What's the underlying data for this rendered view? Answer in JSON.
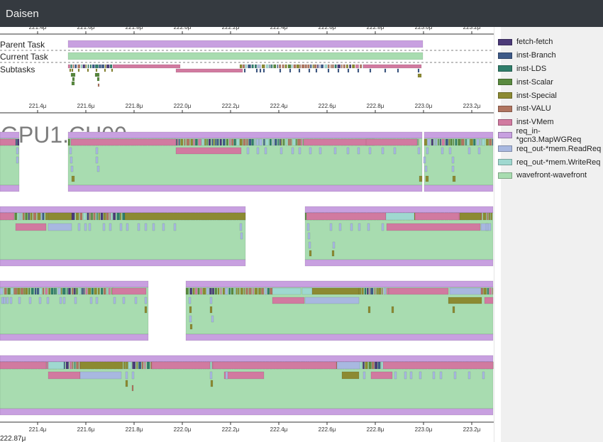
{
  "app": {
    "title": "Daisen"
  },
  "task_view": {
    "rows": [
      "Parent Task",
      "Current Task",
      "Subtasks"
    ]
  },
  "component": {
    "name": "GPU1.CU00"
  },
  "time_axis": {
    "ticks": [
      "221.4μ",
      "221.6μ",
      "221.8μ",
      "222.0μ",
      "222.2μ",
      "222.4μ",
      "222.6μ",
      "222.8μ",
      "223.0μ",
      "223.2μ"
    ],
    "cursor_time": "222.87μ"
  },
  "legend": {
    "items": [
      {
        "label": "fetch-fetch",
        "color": "#4b3a78"
      },
      {
        "label": "inst-Branch",
        "color": "#3e5a88"
      },
      {
        "label": "inst-LDS",
        "color": "#2f7d6a"
      },
      {
        "label": "inst-Scalar",
        "color": "#5a8a3f"
      },
      {
        "label": "inst-Special",
        "color": "#8c8a32"
      },
      {
        "label": "inst-VALU",
        "color": "#b07560"
      },
      {
        "label": "inst-VMem",
        "color": "#d17aa0"
      },
      {
        "label": "req_in-*gcn3.MapWGReq",
        "color": "#c8a0e0"
      },
      {
        "label": "req_out-*mem.ReadReq",
        "color": "#a8b8e0"
      },
      {
        "label": "req_out-*mem.WriteReq",
        "color": "#9fd8d0"
      },
      {
        "label": "wavefront-wavefront",
        "color": "#a8dcb0"
      }
    ]
  }
}
